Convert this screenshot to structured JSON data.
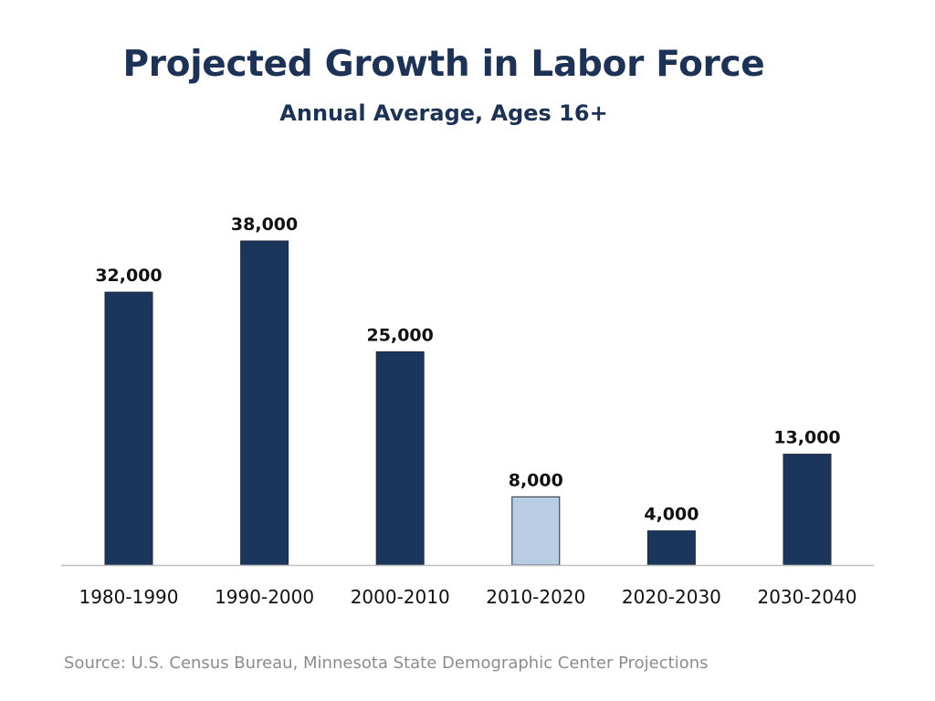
{
  "title": "Projected Growth in Labor Force",
  "subtitle": "Annual Average, Ages 16+",
  "source": "Source: U.S. Census Bureau, Minnesota State Demographic Center Projections",
  "colors": {
    "bar": "#1b365d",
    "bar_highlight": "#b8cce4",
    "title": "#1c3257",
    "baseline": "#bfbfbf",
    "source": "#8c8c8c"
  },
  "chart_data": {
    "type": "bar",
    "categories": [
      "1980-1990",
      "1990-2000",
      "2000-2010",
      "2010-2020",
      "2020-2030",
      "2030-2040"
    ],
    "values": [
      32000,
      38000,
      25000,
      8000,
      4000,
      13000
    ],
    "data_labels": [
      "32,000",
      "38,000",
      "25,000",
      "8,000",
      "4,000",
      "13,000"
    ],
    "highlight_category": "2010-2020",
    "title": "Projected Growth in Labor Force",
    "subtitle": "Annual Average, Ages 16+",
    "xlabel": "",
    "ylabel": "",
    "ylim": [
      0,
      38000
    ],
    "grid": false,
    "legend": "none"
  }
}
